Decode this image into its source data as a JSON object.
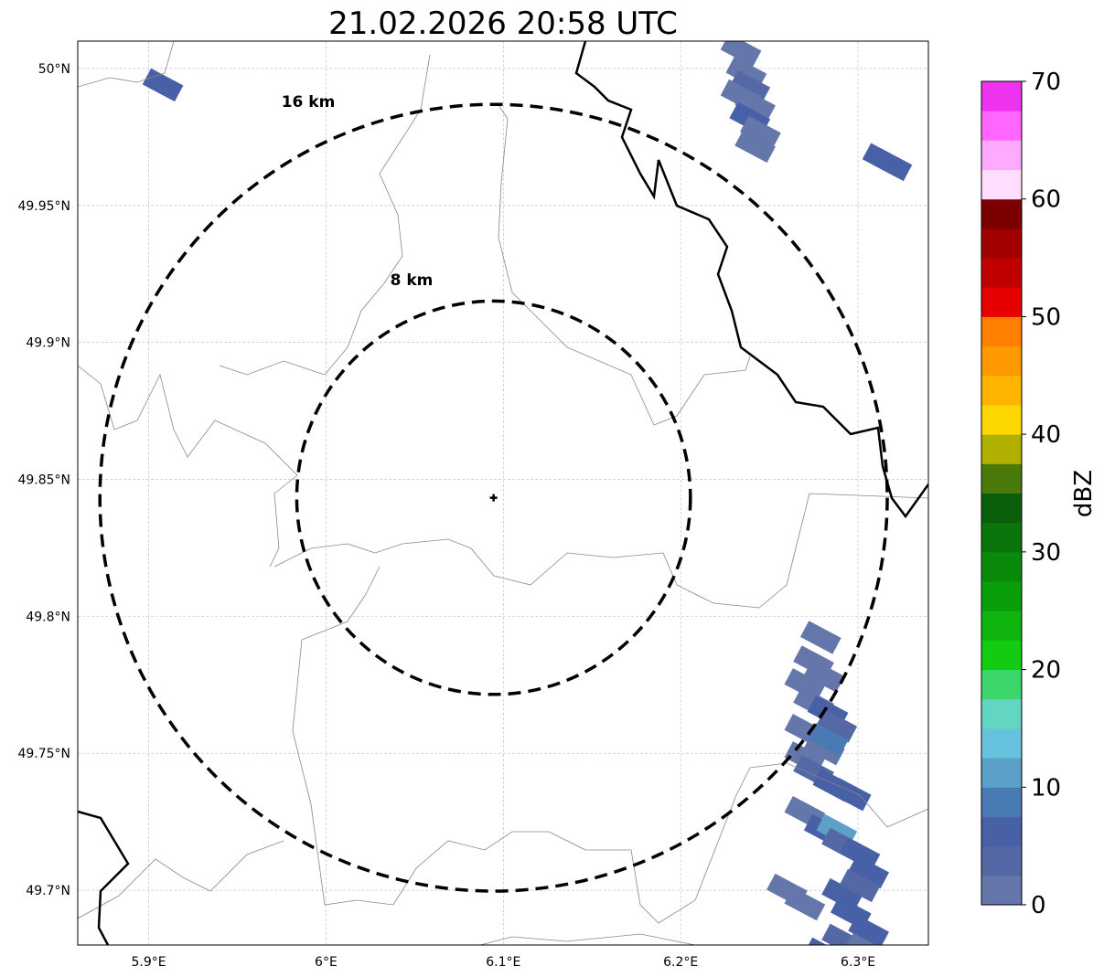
{
  "chart_data": {
    "type": "map",
    "title": "21.02.2026 20:58 UTC",
    "lon_range": [
      5.86,
      6.3397
    ],
    "lat_range": [
      49.68,
      50.01
    ],
    "x_ticks": [
      {
        "value": 5.9,
        "label": "5.9°E"
      },
      {
        "value": 6.0,
        "label": "6°E"
      },
      {
        "value": 6.1,
        "label": "6.1°E"
      },
      {
        "value": 6.2,
        "label": "6.2°E"
      },
      {
        "value": 6.3,
        "label": "6.3°E"
      }
    ],
    "y_ticks": [
      {
        "value": 50.0,
        "label": "50°N"
      },
      {
        "value": 49.95,
        "label": "49.95°N"
      },
      {
        "value": 49.9,
        "label": "49.9°N"
      },
      {
        "value": 49.85,
        "label": "49.85°N"
      },
      {
        "value": 49.8,
        "label": "49.8°N"
      },
      {
        "value": 49.75,
        "label": "49.75°N"
      },
      {
        "value": 49.7,
        "label": "49.7°N"
      }
    ],
    "grid": true,
    "radar_site": {
      "lon": 6.0945,
      "lat": 49.8433
    },
    "range_rings": [
      {
        "radius_km": 8,
        "label": "8 km"
      },
      {
        "radius_km": 16,
        "label": "16 km"
      }
    ],
    "colorbar": {
      "label": "dBZ",
      "min": 0,
      "max": 70,
      "step": 2.5,
      "tick_labels": [
        "0",
        "10",
        "20",
        "30",
        "40",
        "50",
        "60",
        "70"
      ],
      "colors": [
        "#6476aa",
        "#5368a4",
        "#4760a6",
        "#4a7ab4",
        "#5aa0c8",
        "#66c2dd",
        "#63d6c2",
        "#3dd66a",
        "#11cc11",
        "#0fb40f",
        "#0a9f0a",
        "#0a8a0a",
        "#0a750a",
        "#0a5f0a",
        "#4a7a0a",
        "#b0b000",
        "#ffd700",
        "#ffb400",
        "#ff9900",
        "#ff7f00",
        "#e60000",
        "#c00000",
        "#a00000",
        "#7a0000",
        "#ffddff",
        "#ffaaff",
        "#ff66ff",
        "#ee33ee"
      ]
    },
    "echoes": [
      {
        "lon": 6.234,
        "lat": 50.0067,
        "dbz": 2
      },
      {
        "lon": 6.237,
        "lat": 49.9983,
        "dbz": 2
      },
      {
        "lon": 6.239,
        "lat": 49.9933,
        "dbz": 3
      },
      {
        "lon": 6.234,
        "lat": 49.99,
        "dbz": 2
      },
      {
        "lon": 6.242,
        "lat": 49.9867,
        "dbz": 2
      },
      {
        "lon": 6.239,
        "lat": 49.9817,
        "dbz": 5
      },
      {
        "lon": 6.245,
        "lat": 49.9767,
        "dbz": 2
      },
      {
        "lon": 6.242,
        "lat": 49.9717,
        "dbz": 2
      },
      {
        "lon": 6.314,
        "lat": 49.9667,
        "dbz": 5
      },
      {
        "lon": 6.319,
        "lat": 49.965,
        "dbz": 6
      },
      {
        "lon": 5.908,
        "lat": 49.994,
        "dbz": 5
      },
      {
        "lon": 6.279,
        "lat": 49.7923,
        "dbz": 2
      },
      {
        "lon": 6.275,
        "lat": 49.7833,
        "dbz": 2
      },
      {
        "lon": 6.281,
        "lat": 49.7783,
        "dbz": 2
      },
      {
        "lon": 6.27,
        "lat": 49.775,
        "dbz": 2
      },
      {
        "lon": 6.275,
        "lat": 49.7683,
        "dbz": 2
      },
      {
        "lon": 6.283,
        "lat": 49.765,
        "dbz": 6
      },
      {
        "lon": 6.288,
        "lat": 49.76,
        "dbz": 3
      },
      {
        "lon": 6.27,
        "lat": 49.7583,
        "dbz": 2
      },
      {
        "lon": 6.281,
        "lat": 49.7517,
        "dbz": 2
      },
      {
        "lon": 6.283,
        "lat": 49.755,
        "dbz": 9
      },
      {
        "lon": 6.27,
        "lat": 49.7483,
        "dbz": 2
      },
      {
        "lon": 6.275,
        "lat": 49.7433,
        "dbz": 3
      },
      {
        "lon": 6.286,
        "lat": 49.7383,
        "dbz": 6
      },
      {
        "lon": 6.296,
        "lat": 49.735,
        "dbz": 5
      },
      {
        "lon": 6.27,
        "lat": 49.7283,
        "dbz": 2
      },
      {
        "lon": 6.281,
        "lat": 49.7217,
        "dbz": 6
      },
      {
        "lon": 6.288,
        "lat": 49.7217,
        "dbz": 11
      },
      {
        "lon": 6.291,
        "lat": 49.7167,
        "dbz": 3
      },
      {
        "lon": 6.301,
        "lat": 49.7133,
        "dbz": 6
      },
      {
        "lon": 6.306,
        "lat": 49.7067,
        "dbz": 5
      },
      {
        "lon": 6.26,
        "lat": 49.7,
        "dbz": 2
      },
      {
        "lon": 6.27,
        "lat": 49.695,
        "dbz": 2
      },
      {
        "lon": 6.291,
        "lat": 49.6983,
        "dbz": 6
      },
      {
        "lon": 6.301,
        "lat": 49.7017,
        "dbz": 3
      },
      {
        "lon": 6.296,
        "lat": 49.6917,
        "dbz": 6
      },
      {
        "lon": 6.306,
        "lat": 49.685,
        "dbz": 5
      },
      {
        "lon": 6.291,
        "lat": 49.6817,
        "dbz": 3
      },
      {
        "lon": 6.281,
        "lat": 49.6767,
        "dbz": 6
      },
      {
        "lon": 6.296,
        "lat": 49.675,
        "dbz": 5
      },
      {
        "lon": 6.275,
        "lat": 49.6717,
        "dbz": 6
      },
      {
        "lon": 6.304,
        "lat": 49.6783,
        "dbz": 2
      }
    ]
  }
}
